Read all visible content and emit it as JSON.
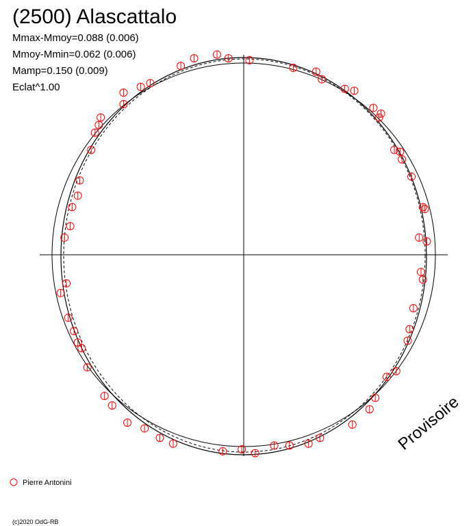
{
  "chart_data": {
    "type": "scatter",
    "title": "(2500) Alascattalo",
    "annotations": [
      "Mmax-Mmoy=0.088 (0.006)",
      "Mmoy-Mmin=0.062 (0.006)",
      "Mamp=0.150 (0.009)",
      "Eclat^1.00"
    ],
    "watermark": "Provisoire",
    "footer": "(c)2020 OdG-RB",
    "xlim": [
      -1.07,
      1.07
    ],
    "ylim": [
      -1.07,
      1.07
    ],
    "series": [
      {
        "name": "Pierre Antonini",
        "color": "#ff0000",
        "x": [
          -0.14,
          -0.08,
          -0.26,
          -0.33,
          0.03,
          0.26,
          0.38,
          0.41,
          0.53,
          0.58,
          0.68,
          0.72,
          0.71,
          0.79,
          0.82,
          0.83,
          0.88,
          0.94,
          0.95,
          0.92,
          0.96,
          0.93,
          0.94,
          0.89,
          0.87,
          0.86,
          0.8,
          0.75,
          0.69,
          0.66,
          0.57,
          0.4,
          0.34,
          0.24,
          0.16,
          0.06,
          -0.01,
          -0.11,
          -0.37,
          -0.44,
          -0.52,
          -0.61,
          -0.69,
          -0.73,
          -0.82,
          -0.85,
          -0.87,
          -0.89,
          -0.92,
          -0.96,
          -0.93,
          -0.94,
          -0.91,
          -0.9,
          -0.87,
          -0.86,
          -0.8,
          -0.78,
          -0.76,
          -0.75,
          -0.63,
          -0.63,
          -0.54,
          -0.49
        ],
        "values": [
          1.05,
          1.03,
          1.03,
          0.99,
          1.02,
          0.98,
          0.96,
          0.92,
          0.87,
          0.86,
          0.77,
          0.74,
          0.72,
          0.55,
          0.54,
          0.5,
          0.41,
          0.25,
          0.24,
          0.09,
          0.07,
          -0.09,
          -0.13,
          -0.28,
          -0.39,
          -0.45,
          -0.61,
          -0.64,
          -0.75,
          -0.81,
          -0.89,
          -0.96,
          -0.99,
          -1.0,
          -1.0,
          -1.04,
          -1.02,
          -1.03,
          -0.99,
          -0.96,
          -0.91,
          -0.88,
          -0.79,
          -0.74,
          -0.59,
          -0.49,
          -0.46,
          -0.4,
          -0.33,
          -0.2,
          -0.15,
          0.09,
          0.15,
          0.25,
          0.31,
          0.39,
          0.55,
          0.64,
          0.68,
          0.72,
          0.79,
          0.85,
          0.88,
          0.9
        ]
      }
    ]
  }
}
